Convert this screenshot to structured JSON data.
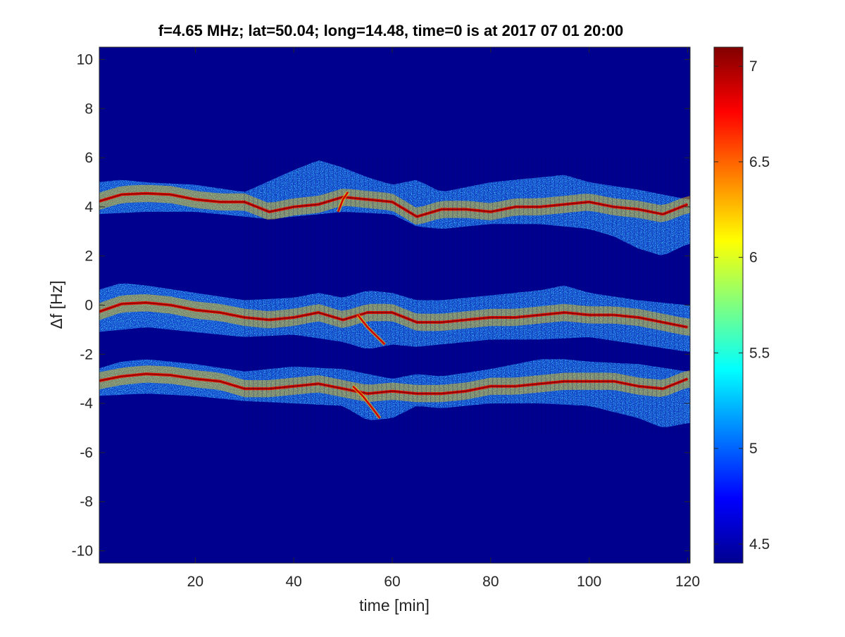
{
  "chart_data": {
    "type": "heatmap",
    "title": "f=4.65 MHz;  lat=50.04; long=14.48, time=0 is at 2017 07 01 20:00",
    "xlabel": "time [min]",
    "ylabel": "Δf [Hz]",
    "xlim": [
      0.5,
      120.5
    ],
    "ylim": [
      -10.5,
      10.5
    ],
    "x_ticks": [
      20,
      40,
      60,
      80,
      100,
      120
    ],
    "y_ticks": [
      -10,
      -8,
      -6,
      -4,
      -2,
      0,
      2,
      4,
      6,
      8,
      10
    ],
    "colorbar": {
      "colormap": "jet",
      "clim": [
        4.4,
        7.1
      ],
      "ticks": [
        4.5,
        5,
        5.5,
        6,
        6.5,
        7
      ]
    },
    "background_value": 4.45,
    "bands": [
      {
        "name": "",
        "centre": [
          [
            0,
            4.2
          ],
          [
            5,
            4.5
          ],
          [
            10,
            4.55
          ],
          [
            15,
            4.5
          ],
          [
            20,
            4.3
          ],
          [
            25,
            4.2
          ],
          [
            30,
            4.2
          ],
          [
            35,
            3.8
          ],
          [
            40,
            4.0
          ],
          [
            45,
            4.1
          ],
          [
            50,
            4.4
          ],
          [
            55,
            4.3
          ],
          [
            60,
            4.2
          ],
          [
            65,
            3.6
          ],
          [
            70,
            3.9
          ],
          [
            75,
            3.9
          ],
          [
            80,
            3.8
          ],
          [
            85,
            4.0
          ],
          [
            90,
            4.0
          ],
          [
            95,
            4.1
          ],
          [
            100,
            4.2
          ],
          [
            105,
            4.0
          ],
          [
            110,
            3.9
          ],
          [
            115,
            3.7
          ],
          [
            120,
            4.1
          ]
        ],
        "upper": [
          [
            0,
            5.0
          ],
          [
            5,
            5.1
          ],
          [
            10,
            5.0
          ],
          [
            20,
            4.9
          ],
          [
            30,
            4.6
          ],
          [
            40,
            5.5
          ],
          [
            45,
            5.9
          ],
          [
            50,
            5.6
          ],
          [
            55,
            5.2
          ],
          [
            60,
            4.9
          ],
          [
            65,
            5.1
          ],
          [
            70,
            4.6
          ],
          [
            80,
            5.0
          ],
          [
            90,
            5.2
          ],
          [
            95,
            5.3
          ],
          [
            100,
            5.0
          ],
          [
            110,
            4.7
          ],
          [
            120,
            4.3
          ]
        ],
        "lower": [
          [
            0,
            3.7
          ],
          [
            10,
            3.8
          ],
          [
            20,
            3.8
          ],
          [
            30,
            3.6
          ],
          [
            35,
            3.5
          ],
          [
            40,
            3.6
          ],
          [
            50,
            3.8
          ],
          [
            60,
            3.7
          ],
          [
            65,
            3.2
          ],
          [
            70,
            3.1
          ],
          [
            80,
            3.3
          ],
          [
            90,
            3.3
          ],
          [
            100,
            3.1
          ],
          [
            105,
            2.8
          ],
          [
            110,
            2.3
          ],
          [
            115,
            2.0
          ],
          [
            120,
            2.5
          ]
        ]
      },
      {
        "name": "",
        "centre": [
          [
            0,
            -0.3
          ],
          [
            5,
            0.05
          ],
          [
            10,
            0.1
          ],
          [
            15,
            0.0
          ],
          [
            20,
            -0.2
          ],
          [
            25,
            -0.3
          ],
          [
            30,
            -0.5
          ],
          [
            35,
            -0.6
          ],
          [
            40,
            -0.5
          ],
          [
            45,
            -0.3
          ],
          [
            50,
            -0.6
          ],
          [
            55,
            -0.3
          ],
          [
            60,
            -0.3
          ],
          [
            65,
            -0.7
          ],
          [
            70,
            -0.7
          ],
          [
            75,
            -0.6
          ],
          [
            80,
            -0.5
          ],
          [
            85,
            -0.5
          ],
          [
            90,
            -0.4
          ],
          [
            95,
            -0.3
          ],
          [
            100,
            -0.4
          ],
          [
            105,
            -0.4
          ],
          [
            110,
            -0.5
          ],
          [
            115,
            -0.7
          ],
          [
            120,
            -0.9
          ]
        ],
        "upper": [
          [
            0,
            0.6
          ],
          [
            5,
            0.9
          ],
          [
            10,
            0.8
          ],
          [
            20,
            0.5
          ],
          [
            30,
            0.2
          ],
          [
            40,
            0.3
          ],
          [
            45,
            0.5
          ],
          [
            50,
            0.3
          ],
          [
            55,
            0.6
          ],
          [
            60,
            0.5
          ],
          [
            65,
            0.2
          ],
          [
            70,
            0.2
          ],
          [
            80,
            0.4
          ],
          [
            90,
            0.6
          ],
          [
            95,
            0.8
          ],
          [
            100,
            0.5
          ],
          [
            110,
            0.2
          ],
          [
            120,
            0.0
          ]
        ],
        "lower": [
          [
            0,
            -1.1
          ],
          [
            10,
            -0.9
          ],
          [
            20,
            -1.1
          ],
          [
            30,
            -1.3
          ],
          [
            40,
            -1.2
          ],
          [
            50,
            -1.5
          ],
          [
            55,
            -1.8
          ],
          [
            60,
            -1.6
          ],
          [
            65,
            -1.7
          ],
          [
            70,
            -1.6
          ],
          [
            80,
            -1.4
          ],
          [
            90,
            -1.4
          ],
          [
            100,
            -1.3
          ],
          [
            110,
            -1.6
          ],
          [
            120,
            -1.9
          ]
        ]
      },
      {
        "name": "",
        "centre": [
          [
            0,
            -3.1
          ],
          [
            5,
            -2.9
          ],
          [
            10,
            -2.8
          ],
          [
            15,
            -2.85
          ],
          [
            20,
            -3.0
          ],
          [
            25,
            -3.1
          ],
          [
            30,
            -3.4
          ],
          [
            35,
            -3.4
          ],
          [
            40,
            -3.3
          ],
          [
            45,
            -3.2
          ],
          [
            50,
            -3.4
          ],
          [
            55,
            -3.6
          ],
          [
            60,
            -3.5
          ],
          [
            65,
            -3.6
          ],
          [
            70,
            -3.6
          ],
          [
            75,
            -3.5
          ],
          [
            80,
            -3.3
          ],
          [
            85,
            -3.3
          ],
          [
            90,
            -3.2
          ],
          [
            95,
            -3.1
          ],
          [
            100,
            -3.1
          ],
          [
            105,
            -3.1
          ],
          [
            110,
            -3.3
          ],
          [
            115,
            -3.4
          ],
          [
            120,
            -3.0
          ]
        ],
        "upper": [
          [
            0,
            -2.6
          ],
          [
            5,
            -2.3
          ],
          [
            10,
            -2.2
          ],
          [
            20,
            -2.4
          ],
          [
            30,
            -2.7
          ],
          [
            40,
            -2.5
          ],
          [
            50,
            -2.6
          ],
          [
            55,
            -2.8
          ],
          [
            60,
            -3.0
          ],
          [
            65,
            -2.8
          ],
          [
            70,
            -2.9
          ],
          [
            80,
            -2.6
          ],
          [
            90,
            -2.2
          ],
          [
            95,
            -2.2
          ],
          [
            100,
            -2.3
          ],
          [
            110,
            -2.4
          ],
          [
            120,
            -2.7
          ]
        ],
        "lower": [
          [
            0,
            -3.7
          ],
          [
            10,
            -3.6
          ],
          [
            20,
            -3.7
          ],
          [
            30,
            -3.9
          ],
          [
            40,
            -4.0
          ],
          [
            50,
            -4.1
          ],
          [
            55,
            -4.7
          ],
          [
            60,
            -4.6
          ],
          [
            65,
            -4.1
          ],
          [
            70,
            -4.2
          ],
          [
            80,
            -4.0
          ],
          [
            90,
            -4.0
          ],
          [
            100,
            -4.1
          ],
          [
            110,
            -4.6
          ],
          [
            115,
            -5.0
          ],
          [
            120,
            -4.8
          ]
        ]
      }
    ],
    "hooks": [
      {
        "name": "",
        "points": [
          [
            53,
            -0.4
          ],
          [
            55,
            -0.9
          ],
          [
            57,
            -1.3
          ],
          [
            58.5,
            -1.6
          ]
        ]
      },
      {
        "name": "",
        "points": [
          [
            52,
            -3.3
          ],
          [
            54,
            -3.7
          ],
          [
            56,
            -4.2
          ],
          [
            57.5,
            -4.6
          ]
        ]
      },
      {
        "name": "",
        "points": [
          [
            49,
            3.8
          ],
          [
            50,
            4.3
          ],
          [
            51,
            4.6
          ]
        ]
      }
    ]
  }
}
